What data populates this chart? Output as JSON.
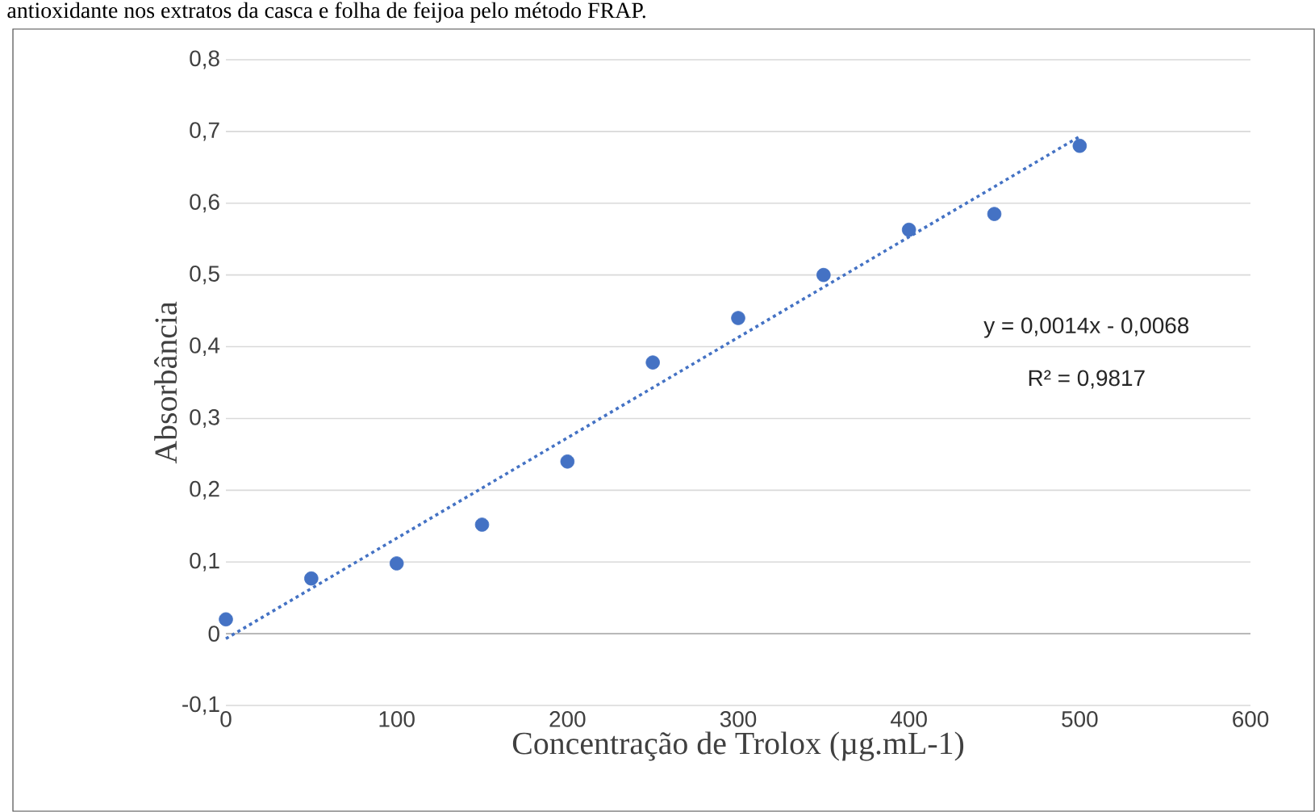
{
  "chart_data": {
    "type": "scatter",
    "title": "antioxidante nos extratos da casca e folha de feijoa pelo método FRAP.",
    "xlabel": "Concentração de Trolox (µg.mL-1)",
    "ylabel": "Absorbância",
    "xlim": [
      0,
      600
    ],
    "xticks": [
      0,
      100,
      200,
      300,
      400,
      500,
      600
    ],
    "ylim": [
      -0.1,
      0.8
    ],
    "yticks": [
      {
        "value": -0.1,
        "label": "-0,1"
      },
      0,
      {
        "value": 0.1,
        "label": "0,1"
      },
      {
        "value": 0.2,
        "label": "0,2"
      },
      {
        "value": 0.3,
        "label": "0,3"
      },
      {
        "value": 0.4,
        "label": "0,4"
      },
      {
        "value": 0.5,
        "label": "0,5"
      },
      {
        "value": 0.6,
        "label": "0,6"
      },
      {
        "value": 0.7,
        "label": "0,7"
      },
      {
        "value": 0.8,
        "label": "0,8"
      }
    ],
    "grid": "y",
    "marker": "circle",
    "series": [
      {
        "color": "#4472c4",
        "x": [
          0,
          50,
          100,
          150,
          200,
          250,
          300,
          350,
          400,
          450,
          500
        ],
        "values": [
          0.02,
          0.077,
          0.098,
          0.152,
          0.24,
          0.378,
          0.44,
          0.5,
          0.563,
          0.585,
          0.68
        ]
      },
      {
        "type": "line",
        "color": "#4472c4",
        "line_style": "dotted",
        "marker": "none",
        "x": [
          0,
          500
        ],
        "values": [
          -0.007,
          0.693
        ]
      }
    ],
    "annotations": [
      "y = 0,0014x - 0,0068",
      "R² = 0,9817"
    ]
  }
}
